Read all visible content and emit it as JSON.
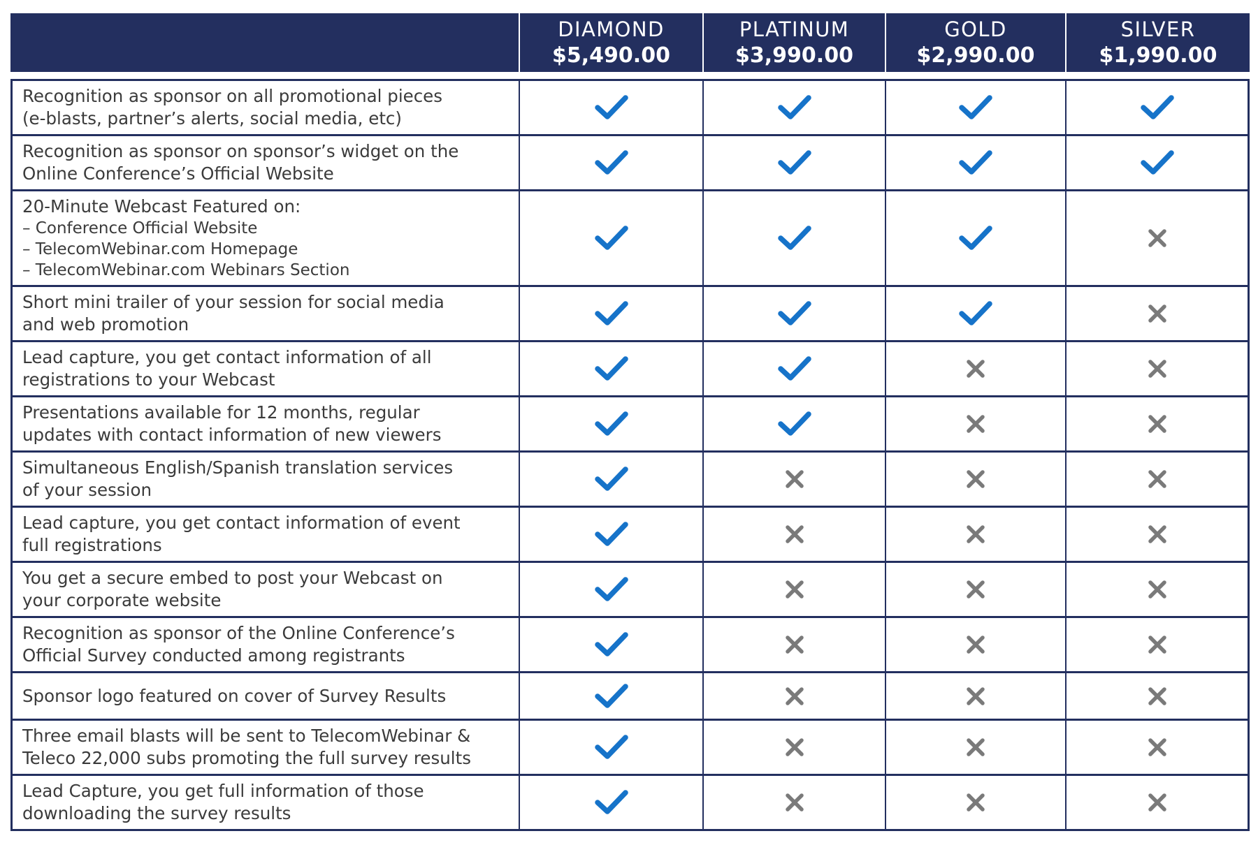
{
  "colors": {
    "header_bg": "#232f5f",
    "check": "#1673c9",
    "x": "#7a7a7a",
    "text": "#3b3b3b"
  },
  "tiers": [
    {
      "name": "DIAMOND",
      "price": "$5,490.00"
    },
    {
      "name": "PLATINUM",
      "price": "$3,990.00"
    },
    {
      "name": "GOLD",
      "price": "$2,990.00"
    },
    {
      "name": "SILVER",
      "price": "$1,990.00"
    }
  ],
  "rows": [
    {
      "lines": [
        "Recognition as sponsor on all promotional pieces",
        "(e-blasts, partner’s alerts, social media, etc)"
      ],
      "sub": [],
      "marks": [
        "check-icon",
        "check-icon",
        "check-icon",
        "check-icon"
      ]
    },
    {
      "lines": [
        "Recognition as sponsor on sponsor’s widget on the",
        "Online Conference’s Official Website"
      ],
      "sub": [],
      "marks": [
        "check-icon",
        "check-icon",
        "check-icon",
        "check-icon"
      ]
    },
    {
      "lines": [
        "20-Minute Webcast Featured on:"
      ],
      "sub": [
        "– Conference Official Website",
        "– TelecomWebinar.com Homepage",
        "– TelecomWebinar.com Webinars Section"
      ],
      "marks": [
        "check-icon",
        "check-icon",
        "check-icon",
        "x-icon"
      ]
    },
    {
      "lines": [
        "Short mini trailer of your session for social media",
        "and web promotion"
      ],
      "sub": [],
      "marks": [
        "check-icon",
        "check-icon",
        "check-icon",
        "x-icon"
      ]
    },
    {
      "lines": [
        "Lead capture, you get contact information of all",
        "registrations to your Webcast"
      ],
      "sub": [],
      "marks": [
        "check-icon",
        "check-icon",
        "x-icon",
        "x-icon"
      ]
    },
    {
      "lines": [
        "Presentations available for 12 months, regular",
        "updates with contact information of new viewers"
      ],
      "sub": [],
      "marks": [
        "check-icon",
        "check-icon",
        "x-icon",
        "x-icon"
      ]
    },
    {
      "lines": [
        "Simultaneous English/Spanish translation services",
        "of your session"
      ],
      "sub": [],
      "marks": [
        "check-icon",
        "x-icon",
        "x-icon",
        "x-icon"
      ]
    },
    {
      "lines": [
        "Lead capture, you get contact information of event",
        "full registrations"
      ],
      "sub": [],
      "marks": [
        "check-icon",
        "x-icon",
        "x-icon",
        "x-icon"
      ]
    },
    {
      "lines": [
        "You get a secure embed to post your Webcast on",
        "your corporate website"
      ],
      "sub": [],
      "marks": [
        "check-icon",
        "x-icon",
        "x-icon",
        "x-icon"
      ]
    },
    {
      "lines": [
        "Recognition as sponsor of the Online Conference’s",
        "Official Survey conducted among registrants"
      ],
      "sub": [],
      "marks": [
        "check-icon",
        "x-icon",
        "x-icon",
        "x-icon"
      ]
    },
    {
      "lines": [
        "Sponsor logo featured on cover of Survey Results"
      ],
      "sub": [],
      "marks": [
        "check-icon",
        "x-icon",
        "x-icon",
        "x-icon"
      ]
    },
    {
      "lines": [
        "Three email blasts will be sent to TelecomWebinar &",
        "Teleco 22,000 subs promoting the full survey results"
      ],
      "sub": [],
      "marks": [
        "check-icon",
        "x-icon",
        "x-icon",
        "x-icon"
      ]
    },
    {
      "lines": [
        "Lead Capture, you get full information of those",
        "downloading the survey results"
      ],
      "sub": [],
      "marks": [
        "check-icon",
        "x-icon",
        "x-icon",
        "x-icon"
      ]
    }
  ]
}
